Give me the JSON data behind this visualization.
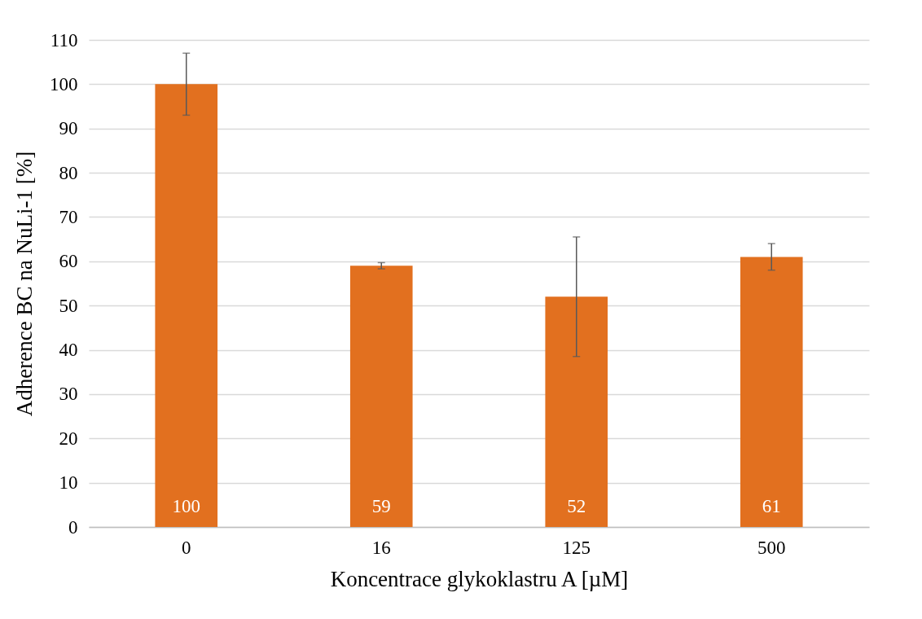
{
  "chart_data": {
    "type": "bar",
    "xlabel": "Koncentrace glykoklastru A [µM]",
    "ylabel": "Adherence BC na NuLi-1 [%]",
    "categories": [
      "0",
      "16",
      "125",
      "500"
    ],
    "values": [
      100,
      59,
      52,
      61
    ],
    "errors": [
      7,
      0.7,
      13.5,
      3
    ],
    "color": "#e2701f",
    "ylim": [
      0,
      110
    ],
    "yticks": [
      0,
      10,
      20,
      30,
      40,
      50,
      60,
      70,
      80,
      90,
      100,
      110
    ],
    "grid": "y",
    "data_labels": true
  }
}
